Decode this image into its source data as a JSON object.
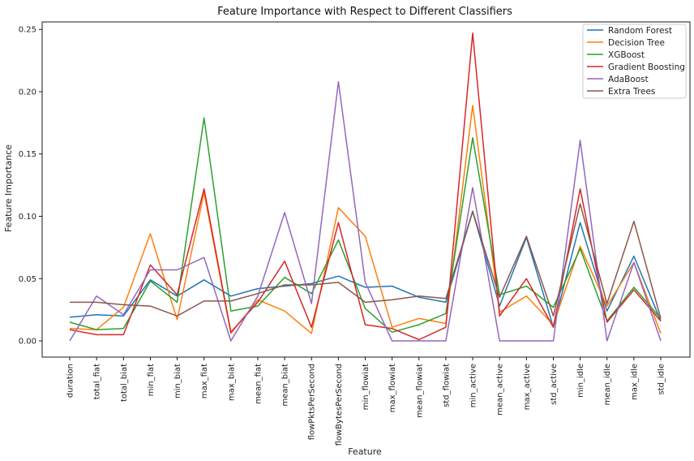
{
  "chart_data": {
    "type": "line",
    "title": "Feature Importance with Respect to Different Classifiers",
    "xlabel": "Feature",
    "ylabel": "Feature Importance",
    "ylim": [
      -0.013,
      0.256
    ],
    "yticks": [
      "0.00",
      "0.05",
      "0.10",
      "0.15",
      "0.20",
      "0.25"
    ],
    "grid": false,
    "legend_position": "top-right",
    "categories": [
      "duration",
      "total_fiat",
      "total_biat",
      "min_fiat",
      "min_biat",
      "max_fiat",
      "max_biat",
      "mean_fiat",
      "mean_biat",
      "flowPktsPerSecond",
      "flowBytesPerSecond",
      "min_flowiat",
      "max_flowiat",
      "mean_flowiat",
      "std_flowiat",
      "min_active",
      "mean_active",
      "max_active",
      "std_active",
      "min_idle",
      "mean_idle",
      "max_idle",
      "std_idle"
    ],
    "series": [
      {
        "name": "Random Forest",
        "color": "#1f77b4",
        "values": [
          0.019,
          0.021,
          0.02,
          0.049,
          0.036,
          0.049,
          0.036,
          0.042,
          0.044,
          0.046,
          0.052,
          0.043,
          0.044,
          0.035,
          0.031,
          0.104,
          0.028,
          0.083,
          0.011,
          0.095,
          0.024,
          0.068,
          0.016
        ]
      },
      {
        "name": "Decision Tree",
        "color": "#ff7f0e",
        "values": [
          0.01,
          0.009,
          0.027,
          0.086,
          0.017,
          0.119,
          0.006,
          0.033,
          0.024,
          0.006,
          0.107,
          0.084,
          0.011,
          0.018,
          0.014,
          0.189,
          0.023,
          0.036,
          0.013,
          0.076,
          0.028,
          0.063,
          0.006
        ]
      },
      {
        "name": "XGBoost",
        "color": "#2ca02c",
        "values": [
          0.015,
          0.009,
          0.01,
          0.048,
          0.031,
          0.179,
          0.024,
          0.028,
          0.051,
          0.038,
          0.081,
          0.026,
          0.007,
          0.013,
          0.022,
          0.163,
          0.037,
          0.044,
          0.027,
          0.074,
          0.016,
          0.043,
          0.018
        ]
      },
      {
        "name": "Gradient Boosting",
        "color": "#d62728",
        "values": [
          0.009,
          0.005,
          0.005,
          0.061,
          0.037,
          0.122,
          0.007,
          0.031,
          0.064,
          0.011,
          0.095,
          0.013,
          0.01,
          0.001,
          0.011,
          0.247,
          0.02,
          0.05,
          0.011,
          0.122,
          0.015,
          0.041,
          0.016
        ]
      },
      {
        "name": "AdaBoost",
        "color": "#9467bd",
        "values": [
          0.0,
          0.036,
          0.021,
          0.057,
          0.057,
          0.067,
          0.0,
          0.036,
          0.103,
          0.03,
          0.208,
          0.047,
          0.0,
          0.0,
          0.0,
          0.123,
          0.0,
          0.0,
          0.0,
          0.161,
          0.0,
          0.063,
          0.0
        ]
      },
      {
        "name": "Extra Trees",
        "color": "#8c564b",
        "values": [
          0.031,
          0.031,
          0.029,
          0.028,
          0.02,
          0.032,
          0.032,
          0.038,
          0.045,
          0.045,
          0.047,
          0.031,
          0.033,
          0.036,
          0.034,
          0.104,
          0.035,
          0.084,
          0.02,
          0.11,
          0.03,
          0.096,
          0.018
        ]
      }
    ]
  }
}
